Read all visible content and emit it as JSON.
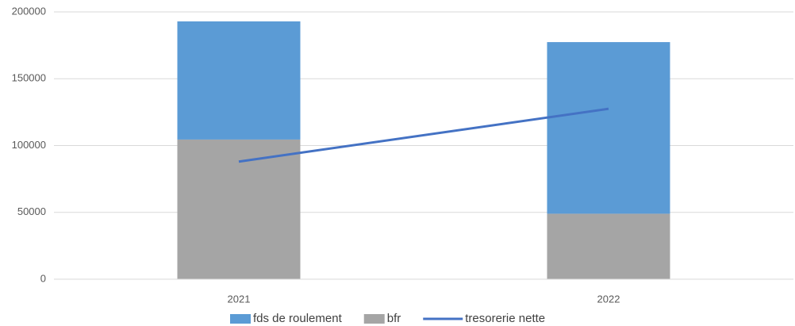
{
  "chart_data": {
    "type": "bar",
    "stacked": true,
    "categories": [
      "2021",
      "2022"
    ],
    "series": [
      {
        "name": "fds de roulement",
        "color": "#5b9bd5",
        "type": "bar",
        "values": [
          88400,
          128400
        ]
      },
      {
        "name": "bfr",
        "color": "#a5a5a5",
        "type": "bar",
        "values": [
          104500,
          49000
        ]
      },
      {
        "name": "tresorerie nette",
        "color": "#4472c4",
        "type": "line",
        "values": [
          88000,
          127500
        ]
      }
    ],
    "ylim": [
      0,
      200000
    ],
    "yticks": [
      0,
      50000,
      100000,
      150000,
      200000
    ],
    "grid": true,
    "legend": "bottom"
  }
}
